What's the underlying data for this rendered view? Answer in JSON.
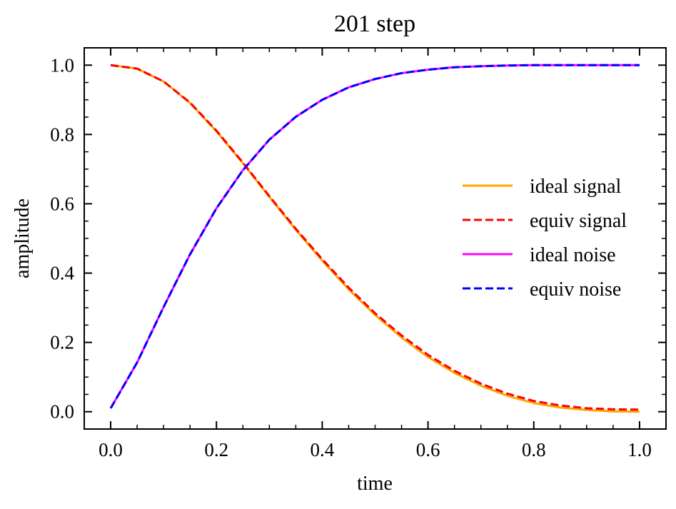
{
  "chart_data": {
    "type": "line",
    "title": "201 step",
    "xlabel": "time",
    "ylabel": "amplitude",
    "xlim": [
      -0.05,
      1.05
    ],
    "ylim": [
      -0.05,
      1.05
    ],
    "xticks": [
      0.0,
      0.2,
      0.4,
      0.6,
      0.8,
      1.0
    ],
    "xtick_labels": [
      "0.0",
      "0.2",
      "0.4",
      "0.6",
      "0.8",
      "1.0"
    ],
    "yticks": [
      0.0,
      0.2,
      0.4,
      0.6,
      0.8,
      1.0
    ],
    "ytick_labels": [
      "0.0",
      "0.2",
      "0.4",
      "0.6",
      "0.8",
      "1.0"
    ],
    "grid": false,
    "legend_position": "right",
    "x": [
      0.0,
      0.05,
      0.1,
      0.15,
      0.2,
      0.25,
      0.3,
      0.35,
      0.4,
      0.45,
      0.5,
      0.55,
      0.6,
      0.65,
      0.7,
      0.75,
      0.8,
      0.85,
      0.9,
      0.95,
      1.0
    ],
    "series": [
      {
        "name": "ideal signal",
        "color": "#ffa500",
        "linestyle": "solid",
        "values": [
          1.0,
          0.99,
          0.953,
          0.891,
          0.809,
          0.717,
          0.62,
          0.525,
          0.436,
          0.353,
          0.279,
          0.214,
          0.158,
          0.112,
          0.075,
          0.046,
          0.025,
          0.012,
          0.005,
          0.001,
          0.0
        ]
      },
      {
        "name": "equiv signal",
        "color": "#ff0000",
        "linestyle": "dashed",
        "values": [
          1.0,
          0.99,
          0.953,
          0.892,
          0.811,
          0.719,
          0.622,
          0.528,
          0.44,
          0.358,
          0.284,
          0.22,
          0.164,
          0.118,
          0.081,
          0.052,
          0.031,
          0.018,
          0.01,
          0.007,
          0.006
        ]
      },
      {
        "name": "ideal noise",
        "color": "#ff00ff",
        "linestyle": "solid",
        "values": [
          0.01,
          0.142,
          0.302,
          0.454,
          0.587,
          0.697,
          0.785,
          0.851,
          0.9,
          0.936,
          0.96,
          0.977,
          0.987,
          0.994,
          0.997,
          0.999,
          1.0,
          1.0,
          1.0,
          1.0,
          1.0
        ]
      },
      {
        "name": "equiv noise",
        "color": "#0000ff",
        "linestyle": "dashed",
        "values": [
          0.01,
          0.142,
          0.302,
          0.454,
          0.587,
          0.697,
          0.785,
          0.851,
          0.9,
          0.936,
          0.96,
          0.977,
          0.987,
          0.994,
          0.997,
          0.999,
          1.0,
          1.0,
          1.0,
          1.0,
          1.0
        ]
      }
    ]
  }
}
